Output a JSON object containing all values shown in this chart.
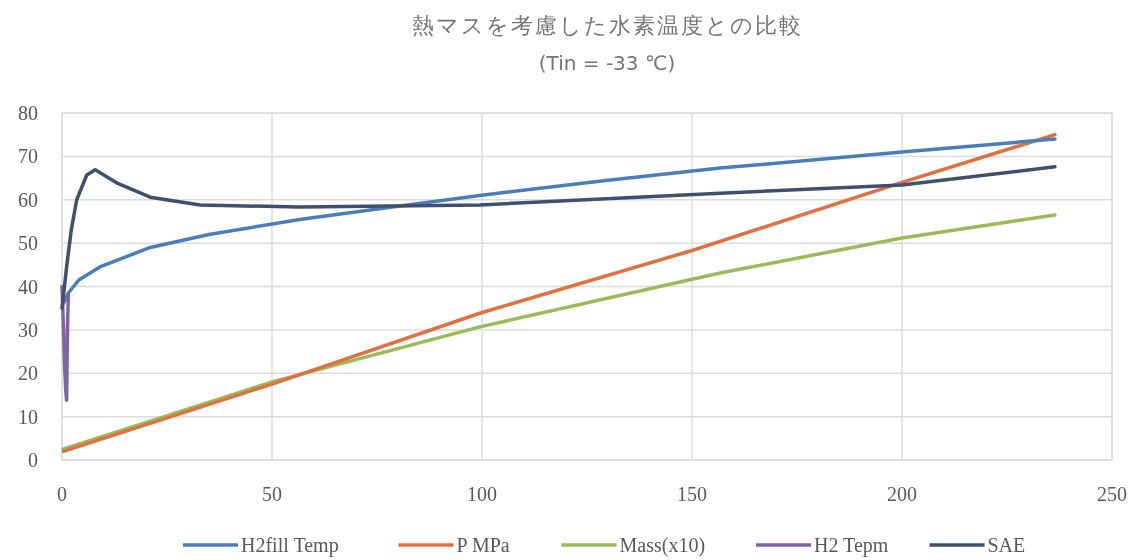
{
  "chart_data": {
    "type": "line",
    "title": "熱マスを考慮した水素温度との比較",
    "subtitle": "(Tin = -33 ℃)",
    "xlim": [
      0,
      250
    ],
    "xticks": [
      0,
      50,
      100,
      150,
      200,
      250
    ],
    "ylim": [
      0,
      80
    ],
    "yticks": [
      0,
      10,
      20,
      30,
      40,
      50,
      60,
      70,
      80
    ],
    "grid": true,
    "legend": "bottom",
    "line_style": "solid",
    "series": [
      {
        "name": "H2fill Temp",
        "color": "#4a7ebb",
        "x": [
          0.3,
          1.5,
          4,
          9,
          21,
          35,
          57,
          80,
          99.5,
          130,
          156.7,
          200,
          236.4
        ],
        "values": [
          36,
          38.5,
          41.5,
          44.5,
          49,
          52,
          55.5,
          58.5,
          61,
          64.5,
          67.3,
          71,
          74
        ]
      },
      {
        "name": "P  MPa",
        "color": "#e07040",
        "x": [
          0.3,
          50,
          100,
          150,
          200,
          236.4
        ],
        "values": [
          2,
          17.5,
          34,
          48.3,
          64,
          75
        ]
      },
      {
        "name": "Mass(x10)",
        "color": "#9bbb59",
        "x": [
          0.3,
          50,
          99.5,
          156.7,
          200,
          236.4
        ],
        "values": [
          2.5,
          18,
          30.7,
          43.1,
          51.2,
          56.5
        ]
      },
      {
        "name": "H2 Tepm",
        "color": "#8064a2",
        "x": [
          0,
          0.3,
          0.6,
          0.9,
          1.1,
          1.3,
          1.5
        ],
        "values": [
          40,
          32,
          22,
          16,
          13.8,
          30,
          38
        ]
      },
      {
        "name": "SAE",
        "color": "#3f4f6e",
        "x": [
          0,
          1.1,
          2.2,
          3.5,
          5.9,
          7.9,
          13,
          21,
          32.9,
          56.7,
          99.5,
          156.7,
          200,
          236.4
        ],
        "values": [
          35,
          44.5,
          53,
          60,
          65.7,
          66.9,
          63.9,
          60.6,
          58.8,
          58.3,
          58.8,
          61.5,
          63.4,
          67.6
        ]
      }
    ]
  }
}
